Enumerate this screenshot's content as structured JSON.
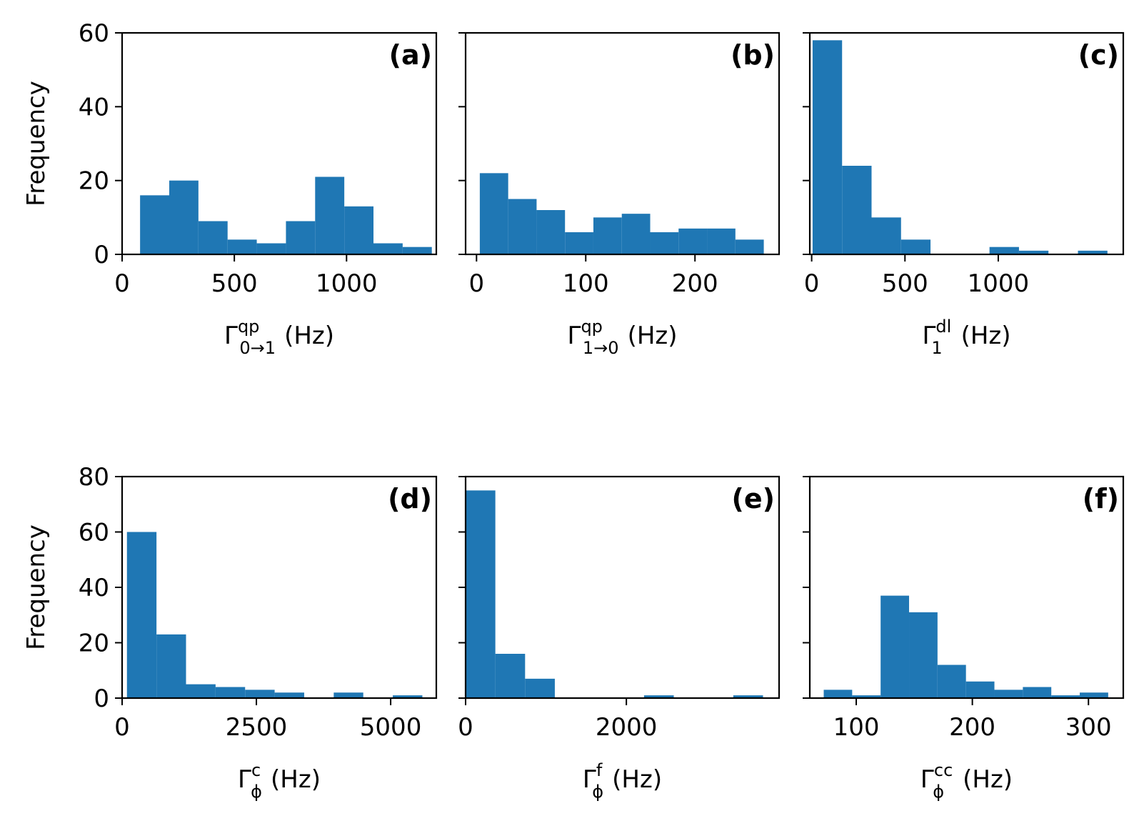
{
  "chart_data": [
    {
      "type": "bar",
      "panel": "(a)",
      "xlabel": {
        "symbol": "Γ",
        "sup": "qp",
        "sub": "0→1",
        "unit": "(Hz)"
      },
      "ylabel": "Frequency",
      "xlim": [
        0,
        1400
      ],
      "ylim": [
        0,
        60
      ],
      "xticks": [
        0,
        500,
        1000
      ],
      "xtick_labels": [
        "0",
        "500",
        "1000"
      ],
      "yticks": [
        0,
        20,
        40,
        60
      ],
      "ytick_labels": [
        "0",
        "20",
        "40",
        "60"
      ],
      "bin_edges": [
        80,
        210,
        340,
        470,
        600,
        730,
        860,
        990,
        1120,
        1250,
        1380
      ],
      "values": [
        16,
        20,
        9,
        4,
        3,
        9,
        21,
        13,
        3,
        2
      ]
    },
    {
      "type": "bar",
      "panel": "(b)",
      "xlabel": {
        "symbol": "Γ",
        "sup": "qp",
        "sub": "1→0",
        "unit": "(Hz)"
      },
      "ylabel": "",
      "xlim": [
        -10,
        277
      ],
      "ylim": [
        0,
        60
      ],
      "xticks": [
        0,
        100,
        200
      ],
      "xtick_labels": [
        "0",
        "100",
        "200"
      ],
      "yticks": [
        0,
        20,
        40,
        60
      ],
      "ytick_labels": [],
      "bin_edges": [
        3,
        29,
        55,
        81,
        107,
        133,
        159,
        185,
        211,
        237,
        263
      ],
      "values": [
        22,
        15,
        12,
        6,
        10,
        11,
        6,
        7,
        7,
        4
      ]
    },
    {
      "type": "bar",
      "panel": "(c)",
      "xlabel": {
        "symbol": "Γ",
        "sup": "dl",
        "sub": "1",
        "unit": "(Hz)"
      },
      "ylabel": "",
      "xlim": [
        -10,
        1670
      ],
      "ylim": [
        0,
        60
      ],
      "xticks": [
        0,
        500,
        1000
      ],
      "xtick_labels": [
        "0",
        "500",
        "1000"
      ],
      "yticks": [
        0,
        20,
        40,
        60
      ],
      "ytick_labels": [],
      "bin_edges": [
        5,
        163,
        321,
        479,
        637,
        795,
        953,
        1111,
        1269,
        1427,
        1585
      ],
      "values": [
        58,
        24,
        10,
        4,
        0,
        0,
        2,
        1,
        0,
        1
      ]
    },
    {
      "type": "bar",
      "panel": "(d)",
      "xlabel": {
        "symbol": "Γ",
        "sup": "c",
        "sub": "ϕ",
        "unit": "(Hz)"
      },
      "ylabel": "Frequency",
      "xlim": [
        0,
        5850
      ],
      "ylim": [
        0,
        80
      ],
      "xticks": [
        0,
        2500,
        5000
      ],
      "xtick_labels": [
        "0",
        "2500",
        "5000"
      ],
      "yticks": [
        0,
        20,
        40,
        60,
        80
      ],
      "ytick_labels": [
        "0",
        "20",
        "40",
        "60",
        "80"
      ],
      "bin_edges": [
        90,
        640,
        1190,
        1740,
        2290,
        2840,
        3390,
        3940,
        4490,
        5040,
        5590
      ],
      "values": [
        60,
        23,
        5,
        4,
        3,
        2,
        0,
        2,
        0,
        1
      ]
    },
    {
      "type": "bar",
      "panel": "(e)",
      "xlabel": {
        "symbol": "Γ",
        "sup": "f",
        "sub": "ϕ",
        "unit": "(Hz)"
      },
      "ylabel": "",
      "xlim": [
        0,
        3900
      ],
      "ylim": [
        0,
        80
      ],
      "xticks": [
        0,
        2000
      ],
      "xtick_labels": [
        "0",
        "2000"
      ],
      "yticks": [
        0,
        20,
        40,
        60,
        80
      ],
      "ytick_labels": [],
      "bin_edges": [
        0,
        370,
        740,
        1110,
        1480,
        1850,
        2220,
        2590,
        2960,
        3330,
        3700
      ],
      "values": [
        75,
        16,
        7,
        0,
        0,
        0,
        1,
        0,
        0,
        1
      ]
    },
    {
      "type": "bar",
      "panel": "(f)",
      "xlabel": {
        "symbol": "Γ",
        "sup": "cc",
        "sub": "ϕ",
        "unit": "(Hz)"
      },
      "ylabel": "",
      "xlim": [
        60,
        330
      ],
      "ylim": [
        0,
        80
      ],
      "xticks": [
        100,
        200,
        300
      ],
      "xtick_labels": [
        "100",
        "200",
        "300"
      ],
      "yticks": [
        0,
        20,
        40,
        60,
        80
      ],
      "ytick_labels": [],
      "bin_edges": [
        72,
        96.5,
        121,
        145.5,
        170,
        194.5,
        219,
        243.5,
        268,
        292.5,
        317
      ],
      "values": [
        3,
        1,
        37,
        31,
        12,
        6,
        3,
        4,
        1,
        2
      ]
    }
  ],
  "colors": {
    "bar": "#1f77b4",
    "axis": "#000000"
  }
}
